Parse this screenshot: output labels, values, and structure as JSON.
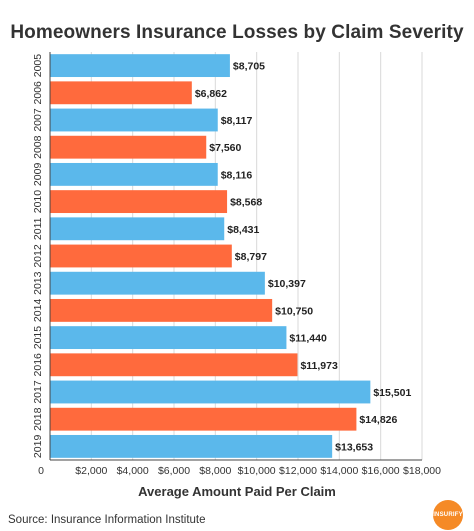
{
  "chart_data": {
    "type": "bar",
    "orientation": "horizontal",
    "title": "Homeowners Insurance Losses by Claim Severity",
    "xlabel": "Average Amount Paid Per Claim",
    "ylabel": "",
    "xlim": [
      0,
      18000
    ],
    "x_ticks": [
      "0",
      "$2,000",
      "$4,000",
      "$6,000",
      "$8,000",
      "$10,000",
      "$12,000",
      "$14,000",
      "$16,000",
      "$18,000"
    ],
    "categories": [
      "2005",
      "2006",
      "2007",
      "2008",
      "2009",
      "2010",
      "2011",
      "2012",
      "2013",
      "2014",
      "2015",
      "2016",
      "2017",
      "2018",
      "2019"
    ],
    "values": [
      8705,
      6862,
      8117,
      7560,
      8116,
      8568,
      8431,
      8797,
      10397,
      10750,
      11440,
      11973,
      15501,
      14826,
      13653
    ],
    "value_labels": [
      "$8,705",
      "$6,862",
      "$8,117",
      "$7,560",
      "$8,116",
      "$8,568",
      "$8,431",
      "$8,797",
      "$10,397",
      "$10,750",
      "$11,440",
      "$11,973",
      "$15,501",
      "$14,826",
      "$13,653"
    ],
    "bar_colors": [
      "#5bb8eb",
      "#ff6a3d"
    ],
    "grid": true,
    "legend": "none"
  },
  "source": "Source: Insurance Information Institute",
  "logo": {
    "text": "INSURIFY",
    "color": "#f58a26"
  }
}
